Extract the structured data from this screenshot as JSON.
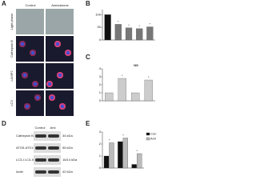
{
  "panel_a": {
    "label": "A",
    "columns": [
      "Control",
      "Amiodarone"
    ],
    "rows": [
      "Light phase",
      "Cathepsin B",
      "LAMP2",
      "LC3"
    ]
  },
  "panel_b": {
    "label": "B",
    "ylim": [
      0,
      120
    ],
    "yticks": [
      0,
      50,
      100
    ],
    "values": [
      100,
      62,
      48,
      45,
      52
    ],
    "asterisks": [
      "*",
      "*",
      "*",
      "*"
    ]
  },
  "panel_c": {
    "label": "C",
    "note": "NS",
    "ylim": [
      0,
      4
    ],
    "yticks": [
      0,
      1,
      2,
      3,
      4
    ],
    "values": [
      1,
      2.8,
      1,
      2.6
    ],
    "asterisks": [
      "*",
      "*"
    ]
  },
  "panel_d": {
    "label": "D",
    "columns": [
      "Control",
      "Ami"
    ],
    "rows": [
      "Cathepsin B",
      "ATG5-ATG12",
      "LC3-I LC3-II",
      "Actin"
    ],
    "sizes": [
      "34 kDa",
      "55 kDa",
      "16/14 kDa",
      "42 kDa"
    ]
  },
  "panel_e": {
    "label": "E",
    "ylim": [
      0,
      3
    ],
    "yticks": [
      0,
      1,
      2,
      3
    ],
    "series": [
      {
        "name": "Con",
        "color": "#111",
        "values": [
          1,
          2.2,
          0.3
        ]
      },
      {
        "name": "Ami",
        "color": "#bbb",
        "values": [
          2.1,
          2.5,
          1.2
        ]
      }
    ],
    "asterisks": [
      "*",
      "*",
      "*"
    ]
  }
}
